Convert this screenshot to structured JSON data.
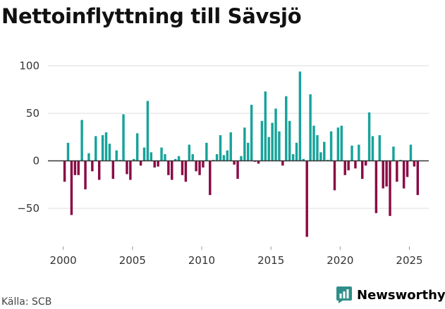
{
  "title": "Nettoinflyttning till Sävsjö",
  "source": "Källa: SCB",
  "brand": {
    "name": "Newsworthy",
    "icon": "bar-chart-icon"
  },
  "colors": {
    "positive": "#17a39a",
    "negative": "#8a0a45",
    "grid": "#dddddd",
    "zero": "#333333",
    "brand": "#2f8f88"
  },
  "chart_data": {
    "type": "bar",
    "title": "Nettoinflyttning till Sävsjö",
    "xlabel": "",
    "ylabel": "",
    "ylim": [
      -90,
      110
    ],
    "xlim": [
      1999.0,
      2026.4
    ],
    "yticks": [
      -50,
      0,
      50,
      100
    ],
    "ytick_labels": [
      "−50",
      "0",
      "50",
      "100"
    ],
    "xticks": [
      2000,
      2005,
      2010,
      2015,
      2020,
      2025
    ],
    "xtick_labels": [
      "2000",
      "2005",
      "2010",
      "2015",
      "2020",
      "2025"
    ],
    "x": [
      2000.1,
      2000.35,
      2000.6,
      2000.85,
      2001.1,
      2001.35,
      2001.6,
      2001.85,
      2002.1,
      2002.35,
      2002.6,
      2002.85,
      2003.1,
      2003.35,
      2003.6,
      2003.85,
      2004.1,
      2004.35,
      2004.6,
      2004.85,
      2005.1,
      2005.35,
      2005.6,
      2005.85,
      2006.1,
      2006.35,
      2006.6,
      2006.85,
      2007.1,
      2007.35,
      2007.6,
      2007.85,
      2008.1,
      2008.35,
      2008.6,
      2008.85,
      2009.1,
      2009.35,
      2009.6,
      2009.85,
      2010.1,
      2010.35,
      2010.6,
      2010.85,
      2011.1,
      2011.35,
      2011.6,
      2011.85,
      2012.1,
      2012.35,
      2012.6,
      2012.85,
      2013.1,
      2013.35,
      2013.6,
      2013.85,
      2014.1,
      2014.35,
      2014.6,
      2014.85,
      2015.1,
      2015.35,
      2015.6,
      2015.85,
      2016.1,
      2016.35,
      2016.6,
      2016.85,
      2017.1,
      2017.35,
      2017.6,
      2017.85,
      2018.1,
      2018.35,
      2018.6,
      2018.85,
      2019.1,
      2019.35,
      2019.6,
      2019.85,
      2020.1,
      2020.35,
      2020.6,
      2020.85,
      2021.1,
      2021.35,
      2021.6,
      2021.85,
      2022.1,
      2022.35,
      2022.6,
      2022.85,
      2023.1,
      2023.35,
      2023.6,
      2023.85,
      2024.1,
      2024.35,
      2024.6,
      2024.85,
      2025.1,
      2025.35,
      2025.6
    ],
    "values": [
      -22,
      19,
      -57,
      -15,
      -15,
      43,
      -30,
      8,
      -11,
      26,
      -20,
      27,
      30,
      18,
      -19,
      11,
      1,
      49,
      -14,
      -20,
      2,
      29,
      -5,
      14,
      63,
      9,
      -7,
      -6,
      14,
      7,
      -15,
      -20,
      2,
      5,
      -15,
      -22,
      17,
      7,
      -11,
      -15,
      -7,
      19,
      -36,
      1,
      7,
      27,
      6,
      11,
      30,
      -4,
      -19,
      5,
      35,
      19,
      59,
      -1,
      -3,
      42,
      73,
      25,
      40,
      55,
      31,
      -5,
      68,
      42,
      7,
      19,
      94,
      2,
      -80,
      70,
      37,
      27,
      9,
      20,
      1,
      31,
      -31,
      35,
      37,
      -15,
      -10,
      16,
      -8,
      17,
      -19,
      -5,
      51,
      26,
      -55,
      27,
      -29,
      -27,
      -58,
      15,
      -22,
      1,
      -29,
      -17,
      17,
      -6,
      -36
    ]
  }
}
